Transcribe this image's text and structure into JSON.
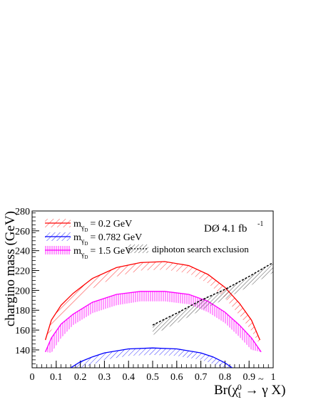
{
  "chart_data": {
    "type": "line",
    "title": "",
    "experiment_label": "DØ 4.1 fb",
    "experiment_label_sup": "-1",
    "xlabel": "Br(χ̃₁⁰→ γ X̃)",
    "ylabel": "chargino mass (GeV)",
    "xlim": [
      0,
      1
    ],
    "ylim": [
      122,
      280
    ],
    "x_ticks": [
      "0",
      "0.1",
      "0.2",
      "0.3",
      "0.4",
      "0.5",
      "0.6",
      "0.7",
      "0.8",
      "0.9",
      "1"
    ],
    "y_ticks": [
      "140",
      "160",
      "180",
      "200",
      "220",
      "240",
      "260",
      "280"
    ],
    "legend_placement": "top-left",
    "series": [
      {
        "name": "mγD = 0.2 GeV",
        "legend_main": "m",
        "legend_sub": "γ",
        "legend_subsub": "D",
        "legend_value": "= 0.2 GeV",
        "color": "#ff0000",
        "hatch": "diag-down",
        "x": [
          0.055,
          0.08,
          0.12,
          0.17,
          0.25,
          0.35,
          0.45,
          0.55,
          0.65,
          0.73,
          0.8,
          0.86,
          0.91,
          0.945
        ],
        "upper": [
          150,
          170,
          185,
          197,
          212,
          223,
          228,
          229,
          225,
          216,
          203,
          187,
          170,
          150
        ],
        "lower": [
          150,
          160,
          174,
          187,
          202,
          214,
          220,
          221,
          217,
          207,
          192,
          175,
          159,
          145
        ]
      },
      {
        "name": "mγD = 0.782 GeV",
        "legend_main": "m",
        "legend_sub": "γ",
        "legend_subsub": "D",
        "legend_value": "= 0.782 GeV",
        "color": "#0000ff",
        "hatch": "diag-down",
        "x": [
          0.16,
          0.2,
          0.25,
          0.3,
          0.4,
          0.5,
          0.6,
          0.7,
          0.75,
          0.8,
          0.83
        ],
        "upper": [
          122,
          128,
          133,
          137,
          141,
          142,
          141,
          137,
          133,
          127,
          122
        ],
        "lower": [
          122,
          122,
          125,
          130,
          134,
          135,
          134,
          130,
          126,
          122,
          122
        ]
      },
      {
        "name": "mγD = 1.5 GeV",
        "legend_main": "m",
        "legend_sub": "γ",
        "legend_subsub": "D",
        "legend_value": "= 1.5 GeV",
        "color": "#ff00ff",
        "hatch": "vertical",
        "x": [
          0.055,
          0.08,
          0.12,
          0.17,
          0.25,
          0.35,
          0.45,
          0.55,
          0.65,
          0.73,
          0.8,
          0.86,
          0.91,
          0.95
        ],
        "upper": [
          138,
          152,
          166,
          176,
          188,
          196,
          199,
          199,
          196,
          189,
          178,
          165,
          152,
          138
        ],
        "lower": [
          138,
          137,
          152,
          165,
          177,
          185,
          189,
          189,
          186,
          178,
          167,
          153,
          140,
          138
        ]
      },
      {
        "name": "diphoton search exclusion",
        "legend_value": "diphoton search exclusion",
        "color": "#000000",
        "hatch": "diag-down",
        "dashed": true,
        "x": [
          0.5,
          0.6,
          0.7,
          0.8,
          0.9,
          1.0
        ],
        "upper": [
          165,
          177,
          190,
          201,
          214,
          228
        ],
        "lower": [
          155,
          167,
          180,
          191,
          204,
          218
        ]
      }
    ]
  }
}
